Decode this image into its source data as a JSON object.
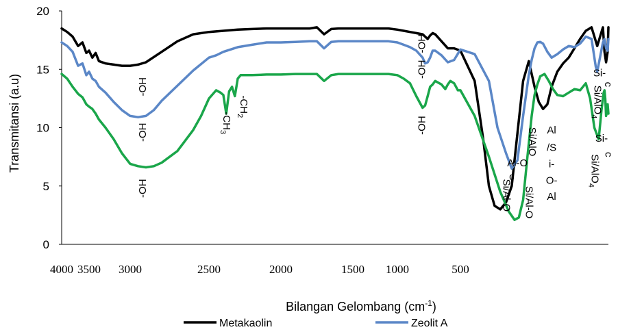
{
  "chart_data": {
    "type": "line",
    "title": "",
    "xlabel": "Bilangan Gelombang (cm",
    "xlabel_sup": "-1",
    "xlabel_suffix": ")",
    "ylabel": "Transmitansi (a.u)",
    "ylim": [
      0,
      20
    ],
    "yticks": [
      "0",
      "5",
      "10",
      "15",
      "20"
    ],
    "xticks": [
      "4000",
      "3500",
      "3000",
      "2500",
      "2000",
      "1500",
      "1000",
      "500"
    ],
    "grid": false,
    "legend_position": "bottom",
    "series": [
      {
        "name": "Metakaolin",
        "color": "#000000",
        "x": [
          4000,
          3900,
          3800,
          3700,
          3620,
          3550,
          3500,
          3460,
          3420,
          3380,
          3300,
          3200,
          3100,
          3000,
          2950,
          2900,
          2800,
          2700,
          2600,
          2500,
          2400,
          2300,
          2200,
          2100,
          2000,
          1900,
          1800,
          1750,
          1700,
          1650,
          1600,
          1500,
          1400,
          1300,
          1200,
          1100,
          1000,
          950,
          900,
          850,
          800,
          780,
          760,
          740,
          720,
          700,
          650,
          600,
          550,
          500,
          450,
          420,
          400,
          380,
          360,
          340,
          320,
          300,
          280,
          260,
          240,
          225,
          210,
          195,
          180,
          160,
          140,
          120,
          100,
          80,
          60,
          40,
          20,
          0,
          -20,
          -40,
          -60,
          -70
        ],
        "y": [
          18.5,
          18.2,
          17.8,
          17.0,
          17.3,
          16.4,
          16.6,
          16.0,
          16.4,
          15.7,
          15.5,
          15.4,
          15.3,
          15.3,
          15.4,
          15.6,
          16.5,
          17.4,
          18.0,
          18.2,
          18.3,
          18.4,
          18.45,
          18.5,
          18.5,
          18.5,
          18.5,
          18.6,
          18.0,
          18.45,
          18.5,
          18.5,
          18.5,
          18.5,
          18.5,
          18.5,
          18.4,
          18.3,
          18.2,
          18.1,
          18.0,
          17.8,
          17.6,
          17.9,
          18.1,
          18.0,
          17.4,
          16.8,
          16.8,
          16.6,
          14.0,
          9.0,
          5.0,
          3.3,
          3.0,
          3.6,
          5.0,
          9.5,
          14.0,
          15.7,
          13.5,
          12.2,
          11.6,
          12.0,
          13.5,
          14.8,
          15.5,
          16.0,
          16.8,
          17.6,
          18.3,
          18.6,
          17.0,
          18.6,
          16.5,
          15.6,
          16.5,
          18.6
        ]
      },
      {
        "name": "Zeolit A",
        "color": "#5b87c7",
        "x": [
          4000,
          3900,
          3800,
          3700,
          3620,
          3550,
          3500,
          3460,
          3420,
          3380,
          3300,
          3200,
          3100,
          3000,
          2950,
          2900,
          2850,
          2800,
          2700,
          2600,
          2500,
          2450,
          2400,
          2300,
          2200,
          2100,
          2000,
          1900,
          1800,
          1750,
          1700,
          1650,
          1600,
          1500,
          1400,
          1300,
          1200,
          1100,
          1000,
          950,
          900,
          850,
          800,
          780,
          760,
          740,
          720,
          700,
          650,
          600,
          550,
          500,
          450,
          400,
          370,
          340,
          320,
          300,
          280,
          260,
          250,
          240,
          230,
          220,
          210,
          195,
          180,
          160,
          140,
          120,
          100,
          80,
          60,
          40,
          25,
          20,
          0,
          -20,
          -40,
          -60,
          -70
        ],
        "y": [
          17.3,
          17.0,
          16.5,
          15.3,
          15.5,
          14.5,
          14.8,
          14.2,
          14.0,
          13.5,
          13.0,
          12.2,
          11.5,
          11.0,
          10.9,
          11.0,
          11.5,
          12.3,
          13.6,
          14.9,
          16.0,
          16.2,
          16.5,
          16.9,
          17.1,
          17.3,
          17.3,
          17.35,
          17.4,
          17.4,
          16.8,
          17.35,
          17.4,
          17.4,
          17.4,
          17.4,
          17.4,
          17.4,
          17.3,
          17.1,
          16.9,
          16.6,
          16.0,
          15.5,
          15.6,
          16.0,
          16.6,
          16.6,
          16.2,
          15.6,
          15.8,
          16.7,
          16.3,
          14.0,
          10.0,
          7.8,
          6.5,
          7.2,
          11.0,
          14.5,
          15.8,
          16.8,
          17.3,
          17.35,
          17.2,
          16.5,
          16.0,
          16.3,
          16.7,
          17.0,
          16.9,
          17.2,
          17.8,
          17.6,
          15.2,
          14.8,
          17.3,
          17.6,
          16.8,
          16.6,
          17.6
        ]
      },
      {
        "name": "",
        "color": "#1aa64a",
        "x": [
          4000,
          3900,
          3800,
          3700,
          3620,
          3550,
          3500,
          3460,
          3420,
          3380,
          3300,
          3200,
          3100,
          3000,
          2950,
          2900,
          2850,
          2800,
          2700,
          2600,
          2550,
          2500,
          2450,
          2420,
          2400,
          2380,
          2360,
          2340,
          2320,
          2300,
          2280,
          2200,
          2100,
          2000,
          1900,
          1800,
          1750,
          1700,
          1650,
          1600,
          1500,
          1400,
          1300,
          1200,
          1100,
          1000,
          950,
          900,
          850,
          800,
          780,
          760,
          740,
          720,
          700,
          650,
          620,
          600,
          580,
          550,
          520,
          500,
          450,
          400,
          360,
          330,
          310,
          295,
          280,
          265,
          250,
          240,
          230,
          220,
          205,
          190,
          175,
          160,
          140,
          120,
          100,
          80,
          60,
          45,
          30,
          15,
          5,
          -10,
          -20,
          -30,
          -40,
          -50,
          -60,
          -70
        ],
        "y": [
          14.6,
          14.2,
          13.5,
          12.9,
          12.6,
          12.0,
          11.8,
          11.6,
          11.2,
          10.7,
          10.0,
          9.0,
          7.8,
          6.9,
          6.7,
          6.6,
          6.7,
          7.0,
          8.0,
          9.8,
          11.0,
          12.5,
          13.2,
          13.0,
          12.8,
          11.2,
          13.1,
          13.5,
          12.7,
          14.2,
          14.5,
          14.5,
          14.55,
          14.55,
          14.6,
          14.6,
          14.6,
          14.0,
          14.5,
          14.6,
          14.6,
          14.6,
          14.6,
          14.6,
          14.6,
          14.5,
          14.2,
          13.8,
          12.7,
          11.7,
          11.9,
          12.7,
          13.5,
          13.7,
          14.0,
          13.7,
          13.3,
          13.7,
          14.0,
          13.8,
          13.2,
          13.2,
          11.0,
          7.5,
          4.5,
          2.8,
          2.1,
          2.3,
          3.8,
          7.5,
          11.0,
          12.8,
          13.7,
          14.4,
          14.6,
          14.0,
          13.3,
          12.8,
          12.7,
          13.0,
          13.3,
          13.2,
          13.8,
          12.5,
          10.0,
          9.0,
          11.5,
          13.0,
          13.2,
          12.5,
          11.0,
          11.3,
          12.0,
          11.2
        ]
      }
    ],
    "annotations": [
      {
        "text": "-OH",
        "x": 2900,
        "y": 13.5,
        "rotate": -90
      },
      {
        "text": "-OH",
        "x": 2900,
        "y": 9.6,
        "rotate": -90
      },
      {
        "text": "-OH",
        "x": 2900,
        "y": 4.8,
        "rotate": -90
      },
      {
        "text": "-CH",
        "sub": "3",
        "x": 2400,
        "y": 10.4,
        "rotate": 90
      },
      {
        "text": "-CH",
        "sub": "2",
        "x": 2280,
        "y": 11.8,
        "rotate": 90
      },
      {
        "text": "-OH",
        "x": 780,
        "y": 17.2,
        "rotate": -90
      },
      {
        "text": "-OH",
        "x": 780,
        "y": 15.0,
        "rotate": -90
      },
      {
        "text": "-OH",
        "x": 780,
        "y": 10.2,
        "rotate": -90
      },
      {
        "text": "Si/Al-O",
        "x": 350,
        "y": 4.2,
        "rotate": 90
      },
      {
        "text": "Si/AlO",
        "x": 260,
        "y": 8.8,
        "rotate": 90
      },
      {
        "text": "Al-O",
        "x": 300,
        "y": 6.7,
        "rotate": 0
      },
      {
        "text": "c",
        "x": 320,
        "y": 5.5,
        "rotate": 0
      },
      {
        "text": "Si/Al-O",
        "x": 270,
        "y": 3.6,
        "rotate": 90
      },
      {
        "text": "Al",
        "x": 180,
        "y": 9.5,
        "rotate": 0
      },
      {
        "text": "/S",
        "x": 180,
        "y": 8.0,
        "rotate": 0
      },
      {
        "text": "i-",
        "x": 180,
        "y": 6.6,
        "rotate": 0
      },
      {
        "text": "O-",
        "x": 180,
        "y": 5.2,
        "rotate": 0
      },
      {
        "text": "Al",
        "x": 180,
        "y": 3.8,
        "rotate": 0
      },
      {
        "text": "Si-",
        "x": 12,
        "y": 14.4,
        "rotate": 0
      },
      {
        "text": "c",
        "x": -28,
        "y": 13.7,
        "rotate": 90
      },
      {
        "text": "Si/AlO",
        "sub": "4",
        "x": 30,
        "y": 12.2,
        "rotate": 90
      },
      {
        "text": "Si-",
        "x": 5,
        "y": 8.8,
        "rotate": 0
      },
      {
        "text": "c",
        "x": -30,
        "y": 7.7,
        "rotate": 90
      },
      {
        "text": "Si/AlO",
        "sub": "4",
        "x": 40,
        "y": 6.3,
        "rotate": 90
      }
    ]
  }
}
